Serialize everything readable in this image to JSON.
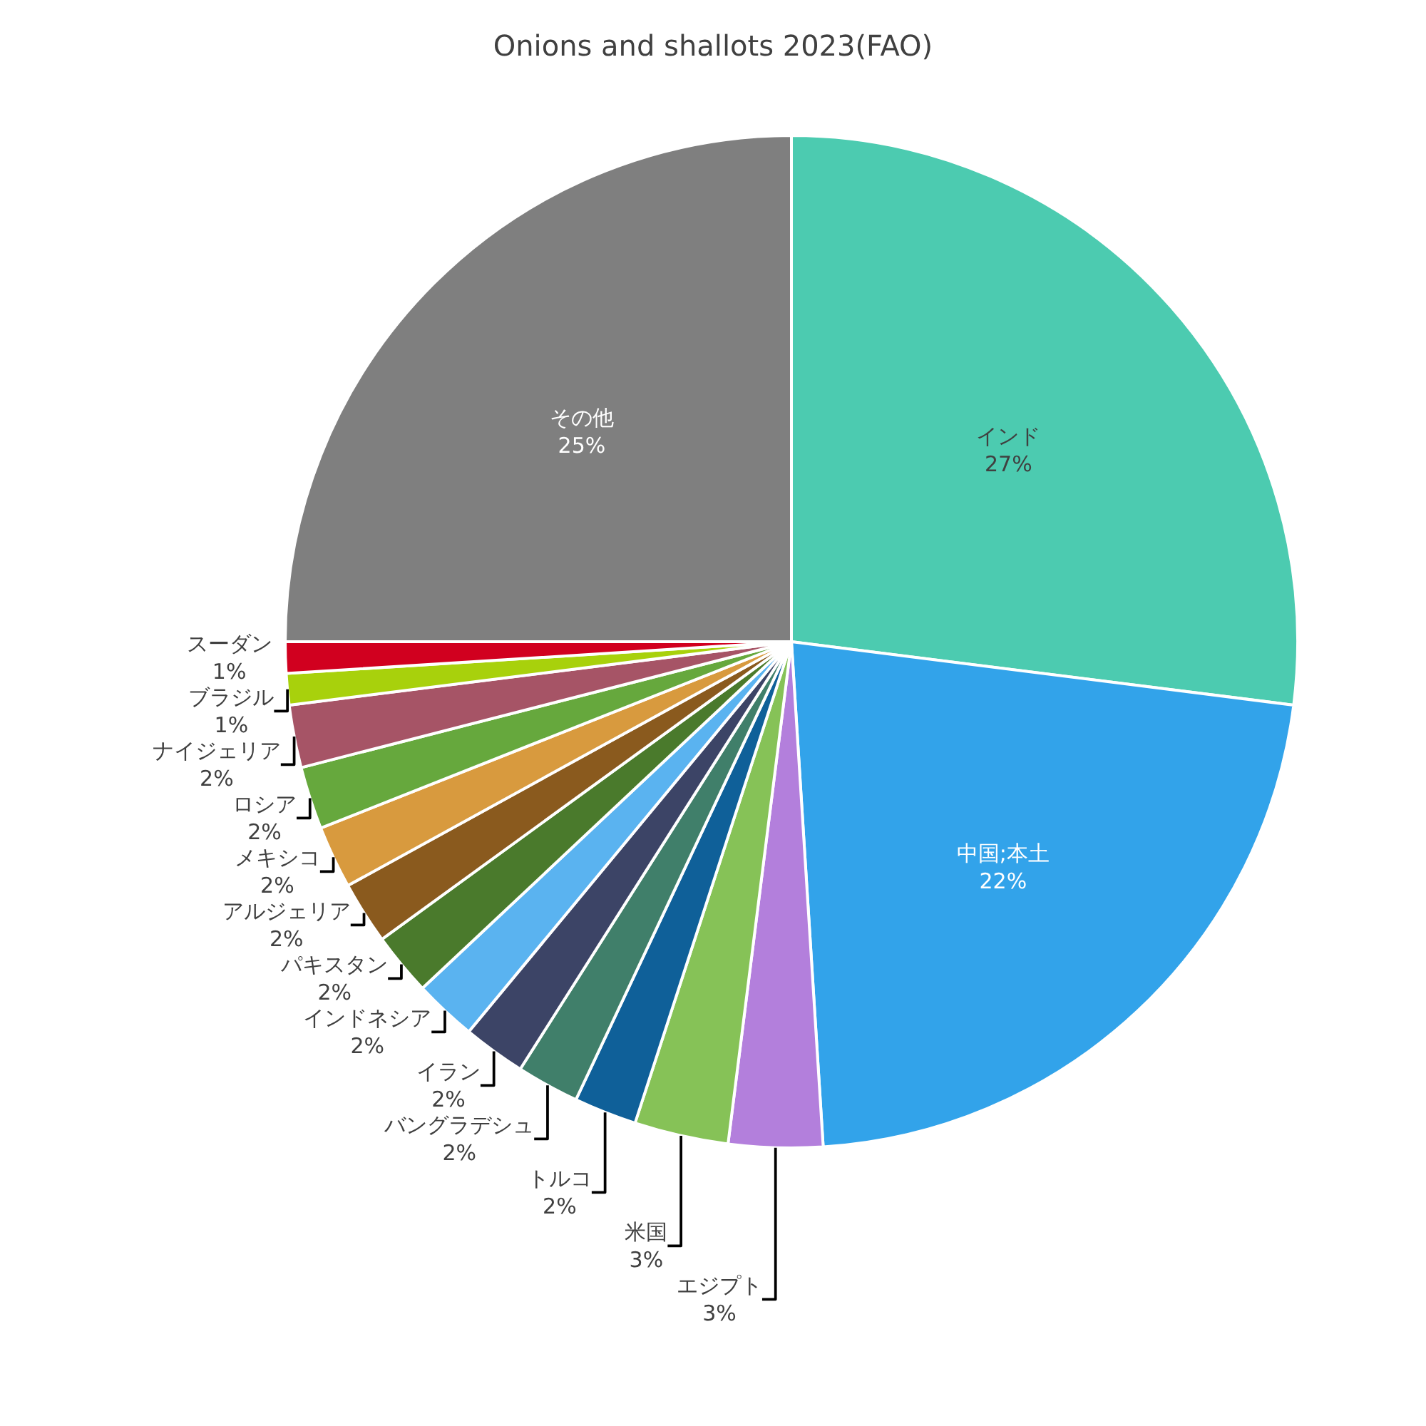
{
  "chart_data": {
    "type": "pie",
    "title": "Onions and shallots 2023(FAO)",
    "categories": [
      "インド",
      "中国;本土",
      "エジプト",
      "米国",
      "トルコ",
      "バングラデシュ",
      "イラン",
      "インドネシア",
      "パキスタン",
      "アルジェリア",
      "メキシコ",
      "ロシア",
      "ナイジェリア",
      "ブラジル",
      "スーダン",
      "その他"
    ],
    "values": [
      27,
      22,
      3,
      3,
      2,
      2,
      2,
      2,
      2,
      2,
      2,
      2,
      2,
      1,
      1,
      25
    ],
    "value_labels": [
      "27%",
      "22%",
      "3%",
      "3%",
      "2%",
      "2%",
      "2%",
      "2%",
      "2%",
      "2%",
      "2%",
      "2%",
      "2%",
      "1%",
      "1%",
      "25%"
    ],
    "colors": [
      "#4ccbb0",
      "#32a3ea",
      "#b37fdc",
      "#86c257",
      "#0f6099",
      "#407f6a",
      "#3c4466",
      "#5ab3f0",
      "#4a7a2c",
      "#8a5a1e",
      "#d89a3e",
      "#66a83d",
      "#a65466",
      "#a8d10c",
      "#d1001f",
      "#7f7f7f"
    ],
    "legend": false
  }
}
